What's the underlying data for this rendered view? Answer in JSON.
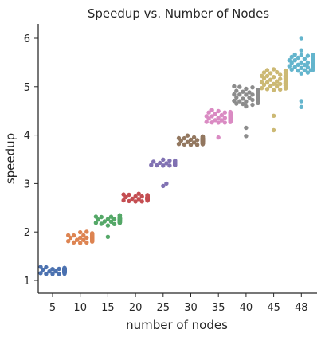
{
  "chart_data": {
    "type": "swarm",
    "title": "Speedup vs. Number of Nodes",
    "xlabel": "number of nodes",
    "ylabel": "speedup",
    "categories": [
      "5",
      "10",
      "15",
      "20",
      "25",
      "30",
      "35",
      "40",
      "45",
      "48"
    ],
    "yticks": [
      "1",
      "2",
      "3",
      "4",
      "5",
      "6"
    ],
    "ylim": [
      0.7,
      6.3
    ],
    "grid": false,
    "legend": "none",
    "colors": [
      "#4c72b0",
      "#dd8452",
      "#55a868",
      "#c44e52",
      "#8172b3",
      "#937860",
      "#da8bc3",
      "#8c8c8c",
      "#ccb974",
      "#64b5cd"
    ],
    "groups": [
      {
        "category": "5",
        "center": 1.2,
        "spread": 0.1,
        "outliers": []
      },
      {
        "category": "10",
        "center": 1.88,
        "spread": 0.14,
        "outliers": []
      },
      {
        "category": "15",
        "center": 2.25,
        "spread": 0.14,
        "outliers": [
          1.9
        ]
      },
      {
        "category": "20",
        "center": 2.7,
        "spread": 0.1,
        "outliers": []
      },
      {
        "category": "25",
        "center": 3.42,
        "spread": 0.09,
        "outliers": [
          3.0,
          2.95
        ]
      },
      {
        "category": "30",
        "center": 3.88,
        "spread": 0.14,
        "outliers": []
      },
      {
        "category": "35",
        "center": 4.38,
        "spread": 0.2,
        "outliers": [
          3.95
        ]
      },
      {
        "category": "40",
        "center": 4.8,
        "spread": 0.25,
        "outliers": [
          4.15,
          3.98
        ]
      },
      {
        "category": "45",
        "center": 5.15,
        "spread": 0.3,
        "outliers": [
          4.4,
          4.1
        ]
      },
      {
        "category": "48",
        "center": 5.5,
        "spread": 0.3,
        "outliers": [
          4.7,
          4.58,
          6.0
        ]
      }
    ]
  }
}
